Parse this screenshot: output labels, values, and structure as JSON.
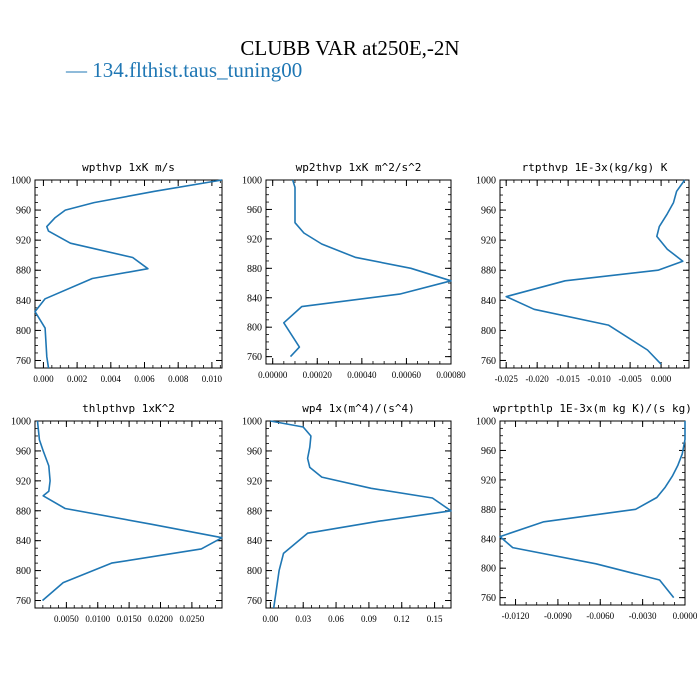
{
  "title": "CLUBB VAR at250E,-2N",
  "legend": {
    "label": "134.flthist.taus_tuning00",
    "color": "#1f77b4"
  },
  "chart_data": [
    {
      "type": "line",
      "title": "wpthvp  1xK m/s",
      "xlim": [
        -0.0005,
        0.0106
      ],
      "ylim": [
        1000,
        750
      ],
      "xticks": [
        "0.000",
        "0.002",
        "0.004",
        "0.006",
        "0.008",
        "0.010"
      ],
      "xtick_values": [
        0.0,
        0.002,
        0.004,
        0.006,
        0.008,
        0.01
      ],
      "yticks": [
        760,
        800,
        840,
        880,
        920,
        960,
        1000
      ],
      "series": [
        {
          "x": [
            0.0003,
            0.0002,
            0.0001,
            -0.0005,
            0.0001,
            0.0029,
            0.0062,
            0.0053,
            0.0016,
            0.0003,
            0.0002,
            0.0007,
            0.0013,
            0.003,
            0.0066,
            0.0106
          ],
          "y": [
            750,
            765,
            803,
            825,
            842,
            869,
            882,
            897,
            916,
            932,
            938,
            950,
            960,
            970,
            985,
            1000
          ]
        }
      ]
    },
    {
      "type": "line",
      "title": "wp2thvp  1xK m^2/s^2",
      "xlim": [
        -3e-05,
        0.0008
      ],
      "ylim": [
        1000,
        750
      ],
      "xticks": [
        "0.00000",
        "0.00020",
        "0.00040",
        "0.00060",
        "0.00080"
      ],
      "xtick_values": [
        0.0,
        0.0002,
        0.0004,
        0.0006,
        0.0008
      ],
      "yticks": [
        760,
        800,
        840,
        880,
        920,
        960,
        1000
      ],
      "series": [
        {
          "x": [
            8e-05,
            0.00012,
            5e-05,
            0.00013,
            0.00057,
            0.0008,
            0.00062,
            0.00037,
            0.00022,
            0.00014,
            0.0001,
            0.0001,
            0.0001,
            0.0001,
            9e-05
          ],
          "y": [
            760,
            773,
            806,
            828,
            845,
            863,
            880,
            895,
            913,
            928,
            942,
            958,
            973,
            990,
            1000
          ]
        }
      ]
    },
    {
      "type": "line",
      "title": "rtpthvp  1E-3x(kg/kg) K",
      "xlim": [
        -0.026,
        0.0045
      ],
      "ylim": [
        1000,
        750
      ],
      "xticks": [
        "-0.025",
        "-0.020",
        "-0.015",
        "-0.010",
        "-0.005",
        "0.000"
      ],
      "xtick_values": [
        -0.025,
        -0.02,
        -0.015,
        -0.01,
        -0.005,
        0.0
      ],
      "yticks": [
        760,
        800,
        840,
        880,
        920,
        960,
        1000
      ],
      "series": [
        {
          "x": [
            0.0,
            -0.0022,
            -0.0085,
            -0.0205,
            -0.025,
            -0.0155,
            -0.0005,
            0.0035,
            0.001,
            -0.0007,
            -0.0003,
            0.001,
            0.002,
            0.0025,
            0.0038
          ],
          "y": [
            755,
            774,
            807,
            828,
            845,
            866,
            880,
            892,
            908,
            925,
            938,
            955,
            970,
            985,
            1000
          ]
        }
      ]
    },
    {
      "type": "line",
      "title": "thlpthvp  1xK^2",
      "xlim": [
        0.0,
        0.0298
      ],
      "ylim": [
        1000,
        750
      ],
      "xticks": [
        "0.0050",
        "0.0100",
        "0.0150",
        "0.0200",
        "0.0250"
      ],
      "xtick_values": [
        0.005,
        0.01,
        0.015,
        0.02,
        0.025
      ],
      "yticks": [
        760,
        800,
        840,
        880,
        920,
        960,
        1000
      ],
      "series": [
        {
          "x": [
            0.0012,
            0.0045,
            0.0122,
            0.0265,
            0.0298,
            0.0185,
            0.0048,
            0.0013,
            0.0022,
            0.0024,
            0.0022,
            0.0013,
            0.0007,
            0.0005,
            0.0004
          ],
          "y": [
            760,
            784,
            810,
            829,
            844,
            862,
            883,
            900,
            906,
            920,
            940,
            960,
            975,
            992,
            1000
          ]
        }
      ]
    },
    {
      "type": "line",
      "title": "wp4  1x(m^4)/(s^4)",
      "xlim": [
        -0.004,
        0.165
      ],
      "ylim": [
        1000,
        750
      ],
      "xticks": [
        "0.00",
        "0.03",
        "0.06",
        "0.09",
        "0.12",
        "0.15"
      ],
      "xtick_values": [
        0.0,
        0.03,
        0.06,
        0.09,
        0.12,
        0.15
      ],
      "yticks": [
        760,
        800,
        840,
        880,
        920,
        960,
        1000
      ],
      "series": [
        {
          "x": [
            0.003,
            0.005,
            0.008,
            0.012,
            0.034,
            0.099,
            0.165,
            0.148,
            0.092,
            0.047,
            0.036,
            0.034,
            0.036,
            0.037,
            0.03,
            0.0
          ],
          "y": [
            750,
            770,
            800,
            823,
            850,
            866,
            880,
            897,
            910,
            925,
            938,
            950,
            965,
            980,
            992,
            1000
          ]
        }
      ]
    },
    {
      "type": "line",
      "title": "wprtpthlp  1E-3x(m kg K)/(s kg)",
      "xlim": [
        -0.0131,
        0.0
      ],
      "ylim": [
        1000,
        750
      ],
      "xticks": [
        "-0.0120",
        "-0.0090",
        "-0.0060",
        "-0.0030",
        "0.0000"
      ],
      "xtick_values": [
        -0.012,
        -0.009,
        -0.006,
        -0.003,
        0.0
      ],
      "yticks": [
        760,
        800,
        840,
        880,
        920,
        960,
        1000
      ],
      "series": [
        {
          "x": [
            -0.0008,
            -0.0018,
            -0.0063,
            -0.0122,
            -0.0131,
            -0.01,
            -0.0035,
            -0.002,
            -0.0014,
            -0.0009,
            -0.0005,
            -0.0002,
            0.0,
            0.0
          ],
          "y": [
            760,
            784,
            806,
            828,
            843,
            863,
            880,
            896,
            910,
            925,
            940,
            955,
            975,
            1000
          ]
        }
      ]
    }
  ]
}
